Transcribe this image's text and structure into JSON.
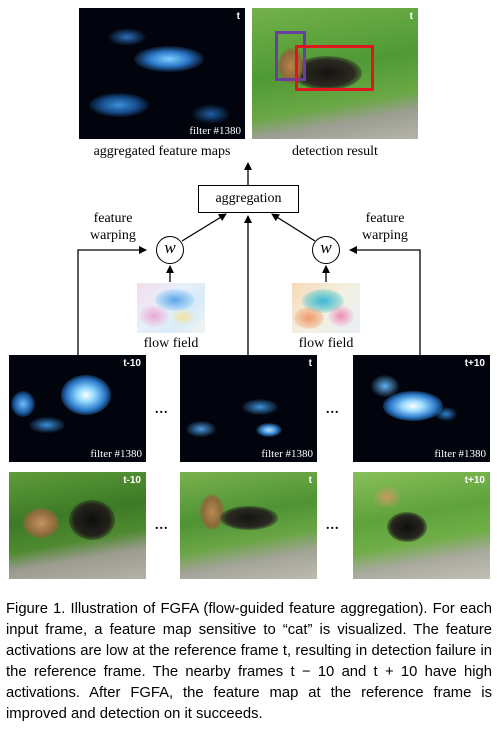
{
  "top": {
    "aggregated": {
      "tag": "t",
      "filter": "filter #1380",
      "label": "aggregated feature maps"
    },
    "detection": {
      "tag": "t",
      "label": "detection result"
    }
  },
  "aggregation_box": "aggregation",
  "warp_left": {
    "line1": "feature",
    "line2": "warping",
    "node": "w"
  },
  "warp_right": {
    "line1": "feature",
    "line2": "warping",
    "node": "w"
  },
  "flow_left": "flow field",
  "flow_right": "flow field",
  "frames": [
    {
      "tag": "t-10",
      "filter": "filter #1380"
    },
    {
      "tag": "t",
      "filter": "filter #1380"
    },
    {
      "tag": "t+10",
      "filter": "filter #1380"
    }
  ],
  "photos": [
    {
      "tag": "t-10"
    },
    {
      "tag": "t"
    },
    {
      "tag": "t+10"
    }
  ],
  "ellipsis": "...",
  "caption": [
    "Figure 1. Illustration of FGFA (flow-guided feature aggregation). For each input frame, a feature map sensitive to “cat” is visualized. The feature activations are low at the reference frame t, resulting in detection failure in the reference frame. The nearby frames t − 10 and t + 10 have high activations. After FGFA, the feature map at the reference frame is improved and detection on it succeeds."
  ],
  "colors": {
    "box_purple": "#6a3fa0",
    "box_red": "#e0161c"
  }
}
